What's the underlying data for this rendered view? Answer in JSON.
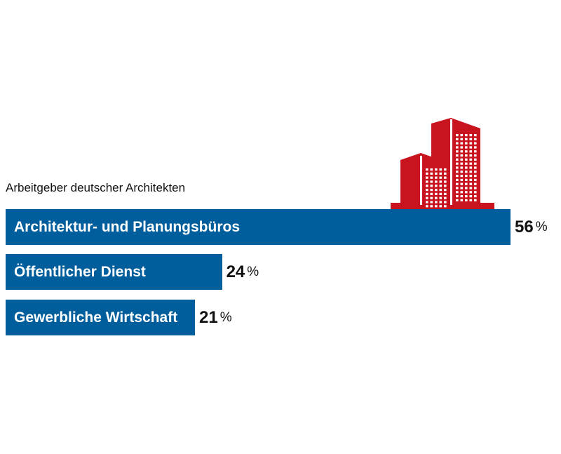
{
  "chart_data": {
    "type": "bar",
    "orientation": "horizontal",
    "title": "Arbeitgeber deutscher Architekten",
    "categories": [
      "Architektur- und Planungsbüros",
      "Öffentlicher Dienst",
      "Gewerbliche Wirtschaft"
    ],
    "values": [
      56,
      24,
      21
    ],
    "unit": "%",
    "bar_color": "#005e9c",
    "illustration": "buildings-icon",
    "illustration_color": "#c8141e"
  }
}
